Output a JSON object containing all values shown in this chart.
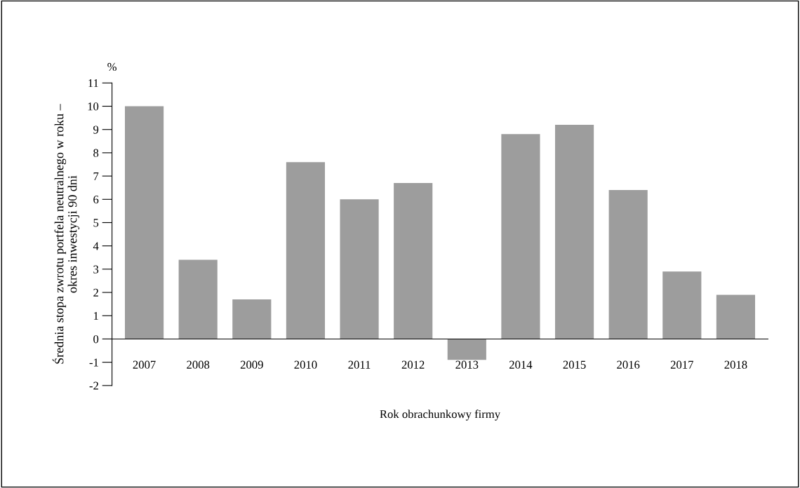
{
  "chart_data": {
    "type": "bar",
    "xlabel": "Rok obrachunkowy firmy",
    "ylabel": "Średnia stopa zwrotu portfela neutralnego w roku –\nokres inwestycji 90 dni",
    "categories": [
      "2007",
      "2008",
      "2009",
      "2010",
      "2011",
      "2012",
      "2013",
      "2014",
      "2015",
      "2016",
      "2017",
      "2018"
    ],
    "values": [
      10.0,
      3.4,
      1.7,
      7.6,
      6.0,
      6.7,
      -0.9,
      8.8,
      9.2,
      6.4,
      2.9,
      1.9
    ],
    "color": "#9d9d9d",
    "ylim": [
      -2,
      11
    ],
    "yticks": [
      {
        "value": -2,
        "label": "-2"
      },
      {
        "value": -1,
        "label": "-1"
      },
      0,
      1,
      2,
      3,
      4,
      5,
      6,
      7,
      8,
      9,
      10,
      11
    ],
    "annotations": [
      "%"
    ],
    "grid": false,
    "legend": false
  }
}
